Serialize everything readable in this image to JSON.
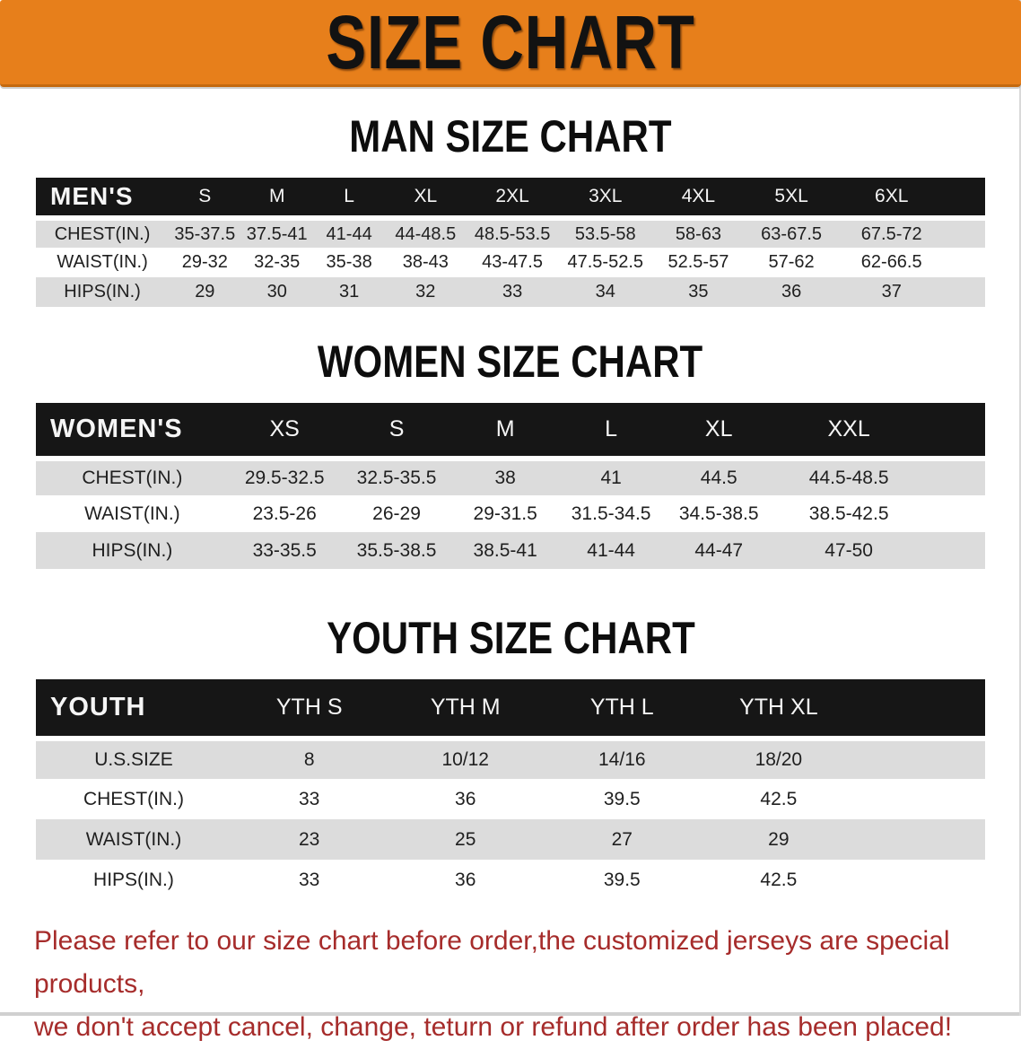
{
  "banner": {
    "title": "SIZE CHART"
  },
  "colors": {
    "banner_bg": "#E77F1B",
    "header_bar": "#161616",
    "row_stripe": "#DCDCDC",
    "note_red": "#A62C2B"
  },
  "sections": [
    {
      "heading": "MAN SIZE CHART",
      "table": {
        "label": "MEN'S",
        "columns": [
          "S",
          "M",
          "L",
          "XL",
          "2XL",
          "3XL",
          "4XL",
          "5XL",
          "6XL"
        ],
        "rows": [
          {
            "label": "CHEST(IN.)",
            "values": [
              "35-37.5",
              "37.5-41",
              "41-44",
              "44-48.5",
              "48.5-53.5",
              "53.5-58",
              "58-63",
              "63-67.5",
              "67.5-72"
            ]
          },
          {
            "label": "WAIST(IN.)",
            "values": [
              "29-32",
              "32-35",
              "35-38",
              "38-43",
              "43-47.5",
              "47.5-52.5",
              "52.5-57",
              "57-62",
              "62-66.5"
            ]
          },
          {
            "label": "HIPS(IN.)",
            "values": [
              "29",
              "30",
              "31",
              "32",
              "33",
              "34",
              "35",
              "36",
              "37"
            ]
          }
        ]
      }
    },
    {
      "heading": "WOMEN SIZE CHART",
      "table": {
        "label": "WOMEN'S",
        "columns": [
          "XS",
          "S",
          "M",
          "L",
          "XL",
          "XXL"
        ],
        "rows": [
          {
            "label": "CHEST(IN.)",
            "values": [
              "29.5-32.5",
              "32.5-35.5",
              "38",
              "41",
              "44.5",
              "44.5-48.5"
            ]
          },
          {
            "label": "WAIST(IN.)",
            "values": [
              "23.5-26",
              "26-29",
              "29-31.5",
              "31.5-34.5",
              "34.5-38.5",
              "38.5-42.5"
            ]
          },
          {
            "label": "HIPS(IN.)",
            "values": [
              "33-35.5",
              "35.5-38.5",
              "38.5-41",
              "41-44",
              "44-47",
              "47-50"
            ]
          }
        ]
      }
    },
    {
      "heading": "YOUTH SIZE CHART",
      "table": {
        "label": "YOUTH",
        "columns": [
          "YTH S",
          "YTH M",
          "YTH L",
          "YTH XL"
        ],
        "rows": [
          {
            "label": "U.S.SIZE",
            "values": [
              "8",
              "10/12",
              "14/16",
              "18/20"
            ]
          },
          {
            "label": "CHEST(IN.)",
            "values": [
              "33",
              "36",
              "39.5",
              "42.5"
            ]
          },
          {
            "label": "WAIST(IN.)",
            "values": [
              "23",
              "25",
              "27",
              "29"
            ]
          },
          {
            "label": "HIPS(IN.)",
            "values": [
              "33",
              "36",
              "39.5",
              "42.5"
            ]
          }
        ]
      }
    }
  ],
  "footer": {
    "line1": "Please refer to our size chart before order,the customized jerseys are special products,",
    "line2": "we don't accept cancel, change, teturn or refund after order has been placed!"
  }
}
